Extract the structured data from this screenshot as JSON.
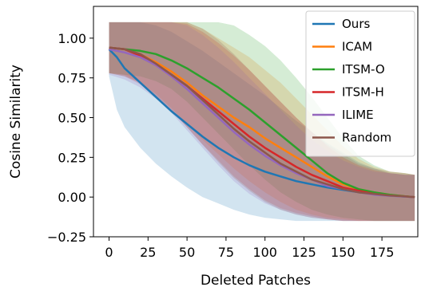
{
  "chart_data": {
    "type": "line",
    "title": "",
    "xlabel": "Deleted Patches",
    "ylabel": "Cosine Similarity",
    "xlim": [
      -10,
      198
    ],
    "ylim": [
      -0.25,
      1.2
    ],
    "xticks": [
      0,
      25,
      50,
      75,
      100,
      125,
      150,
      175
    ],
    "yticks": [
      -0.25,
      0.0,
      0.25,
      0.5,
      0.75,
      1.0
    ],
    "xtick_labels": [
      "0",
      "25",
      "50",
      "75",
      "100",
      "125",
      "150",
      "175"
    ],
    "ytick_labels": [
      "−0.25",
      "0.00",
      "0.25",
      "0.50",
      "0.75",
      "1.00"
    ],
    "grid": false,
    "legend_position": "top-right",
    "series": [
      {
        "name": "Ours",
        "color": "#1f77b4",
        "x": [
          0,
          5,
          10,
          20,
          30,
          40,
          50,
          60,
          70,
          80,
          90,
          100,
          110,
          120,
          130,
          140,
          150,
          160,
          170,
          180,
          190,
          196
        ],
        "y": [
          0.93,
          0.88,
          0.81,
          0.72,
          0.63,
          0.54,
          0.46,
          0.38,
          0.31,
          0.25,
          0.2,
          0.16,
          0.13,
          0.1,
          0.08,
          0.06,
          0.045,
          0.03,
          0.02,
          0.01,
          0.003,
          0.0
        ],
        "lower": [
          0.76,
          0.55,
          0.44,
          0.31,
          0.21,
          0.13,
          0.06,
          0.0,
          -0.04,
          -0.08,
          -0.11,
          -0.13,
          -0.14,
          -0.15,
          -0.15,
          -0.15,
          -0.15,
          -0.15,
          -0.15,
          -0.15,
          -0.15,
          -0.15
        ],
        "upper": [
          1.1,
          1.1,
          1.1,
          1.1,
          1.08,
          1.04,
          0.98,
          0.92,
          0.85,
          0.78,
          0.71,
          0.64,
          0.56,
          0.48,
          0.41,
          0.34,
          0.28,
          0.22,
          0.18,
          0.15,
          0.14,
          0.14
        ]
      },
      {
        "name": "ICAM",
        "color": "#ff7f0e",
        "x": [
          0,
          10,
          20,
          30,
          40,
          50,
          60,
          70,
          80,
          90,
          100,
          110,
          120,
          130,
          140,
          150,
          160,
          170,
          180,
          190,
          196
        ],
        "y": [
          0.94,
          0.93,
          0.9,
          0.85,
          0.79,
          0.72,
          0.64,
          0.57,
          0.5,
          0.44,
          0.37,
          0.31,
          0.25,
          0.19,
          0.13,
          0.08,
          0.05,
          0.03,
          0.015,
          0.005,
          0.0
        ],
        "lower": [
          0.78,
          0.77,
          0.72,
          0.65,
          0.56,
          0.46,
          0.36,
          0.27,
          0.18,
          0.1,
          0.03,
          -0.03,
          -0.08,
          -0.11,
          -0.13,
          -0.14,
          -0.15,
          -0.15,
          -0.15,
          -0.15,
          -0.15
        ],
        "upper": [
          1.1,
          1.1,
          1.1,
          1.1,
          1.1,
          1.1,
          1.06,
          1.0,
          0.94,
          0.88,
          0.8,
          0.72,
          0.62,
          0.52,
          0.42,
          0.32,
          0.24,
          0.19,
          0.16,
          0.15,
          0.14
        ]
      },
      {
        "name": "ITSM-O",
        "color": "#2ca02c",
        "x": [
          0,
          10,
          20,
          30,
          40,
          50,
          60,
          70,
          80,
          90,
          100,
          110,
          120,
          130,
          140,
          150,
          160,
          170,
          180,
          190,
          196
        ],
        "y": [
          0.94,
          0.93,
          0.92,
          0.9,
          0.86,
          0.81,
          0.75,
          0.69,
          0.62,
          0.55,
          0.47,
          0.39,
          0.31,
          0.23,
          0.15,
          0.09,
          0.05,
          0.03,
          0.015,
          0.005,
          0.0
        ],
        "lower": [
          0.78,
          0.77,
          0.76,
          0.73,
          0.68,
          0.6,
          0.5,
          0.4,
          0.3,
          0.2,
          0.11,
          0.03,
          -0.03,
          -0.08,
          -0.11,
          -0.13,
          -0.14,
          -0.15,
          -0.15,
          -0.15,
          -0.15
        ],
        "upper": [
          1.1,
          1.1,
          1.1,
          1.1,
          1.1,
          1.1,
          1.1,
          1.1,
          1.08,
          1.02,
          0.95,
          0.86,
          0.75,
          0.63,
          0.5,
          0.37,
          0.26,
          0.2,
          0.16,
          0.15,
          0.14
        ]
      },
      {
        "name": "ITSM-H",
        "color": "#d62728",
        "x": [
          0,
          10,
          20,
          30,
          40,
          50,
          60,
          70,
          80,
          90,
          100,
          110,
          120,
          130,
          140,
          150,
          160,
          170,
          180,
          190,
          196
        ],
        "y": [
          0.94,
          0.93,
          0.89,
          0.83,
          0.77,
          0.7,
          0.62,
          0.54,
          0.46,
          0.38,
          0.31,
          0.25,
          0.19,
          0.14,
          0.1,
          0.06,
          0.04,
          0.02,
          0.01,
          0.004,
          0.0
        ],
        "lower": [
          0.78,
          0.76,
          0.71,
          0.63,
          0.54,
          0.44,
          0.33,
          0.23,
          0.13,
          0.05,
          -0.02,
          -0.07,
          -0.1,
          -0.12,
          -0.14,
          -0.15,
          -0.15,
          -0.15,
          -0.15,
          -0.15,
          -0.15
        ],
        "upper": [
          1.1,
          1.1,
          1.1,
          1.1,
          1.1,
          1.09,
          1.04,
          0.97,
          0.89,
          0.8,
          0.7,
          0.6,
          0.5,
          0.41,
          0.32,
          0.25,
          0.2,
          0.17,
          0.15,
          0.14,
          0.14
        ]
      },
      {
        "name": "ILIME",
        "color": "#9467bd",
        "x": [
          0,
          10,
          20,
          30,
          40,
          50,
          60,
          70,
          80,
          90,
          100,
          110,
          120,
          130,
          140,
          150,
          160,
          170,
          180,
          190,
          196
        ],
        "y": [
          0.93,
          0.91,
          0.88,
          0.83,
          0.76,
          0.68,
          0.59,
          0.5,
          0.41,
          0.33,
          0.26,
          0.2,
          0.15,
          0.11,
          0.07,
          0.05,
          0.03,
          0.015,
          0.008,
          0.003,
          0.0
        ],
        "lower": [
          0.77,
          0.74,
          0.69,
          0.62,
          0.53,
          0.42,
          0.31,
          0.2,
          0.1,
          0.02,
          -0.04,
          -0.08,
          -0.11,
          -0.13,
          -0.14,
          -0.15,
          -0.15,
          -0.15,
          -0.15,
          -0.15,
          -0.15
        ],
        "upper": [
          1.1,
          1.1,
          1.1,
          1.1,
          1.1,
          1.08,
          1.02,
          0.94,
          0.85,
          0.75,
          0.65,
          0.55,
          0.45,
          0.36,
          0.29,
          0.23,
          0.19,
          0.16,
          0.15,
          0.14,
          0.14
        ]
      },
      {
        "name": "Random",
        "color": "#8c564b",
        "x": [
          0,
          10,
          20,
          30,
          40,
          50,
          60,
          70,
          80,
          90,
          100,
          110,
          120,
          130,
          140,
          150,
          160,
          170,
          180,
          190,
          196
        ],
        "y": [
          0.94,
          0.93,
          0.9,
          0.84,
          0.77,
          0.7,
          0.61,
          0.52,
          0.43,
          0.35,
          0.28,
          0.21,
          0.16,
          0.11,
          0.08,
          0.05,
          0.03,
          0.02,
          0.01,
          0.004,
          0.0
        ],
        "lower": [
          0.78,
          0.76,
          0.72,
          0.64,
          0.55,
          0.44,
          0.33,
          0.22,
          0.12,
          0.04,
          -0.03,
          -0.08,
          -0.11,
          -0.13,
          -0.14,
          -0.15,
          -0.15,
          -0.15,
          -0.15,
          -0.15,
          -0.15
        ],
        "upper": [
          1.1,
          1.1,
          1.1,
          1.1,
          1.1,
          1.1,
          1.06,
          0.99,
          0.9,
          0.8,
          0.7,
          0.6,
          0.5,
          0.41,
          0.33,
          0.27,
          0.21,
          0.18,
          0.16,
          0.15,
          0.14
        ]
      }
    ]
  }
}
